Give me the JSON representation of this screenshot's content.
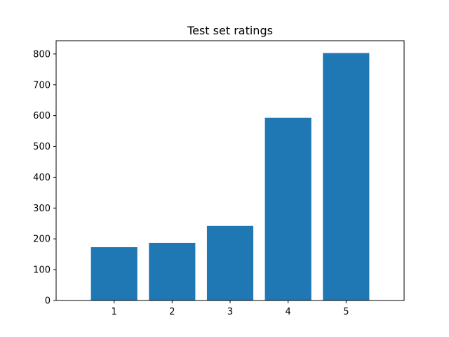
{
  "chart_data": {
    "type": "bar",
    "title": "Test set ratings",
    "xlabel": "",
    "ylabel": "",
    "categories": [
      "1",
      "2",
      "3",
      "4",
      "5"
    ],
    "values": [
      173,
      187,
      242,
      593,
      803
    ],
    "ylim": [
      0,
      843
    ],
    "yticks": [
      "0",
      "100",
      "200",
      "300",
      "400",
      "500",
      "600",
      "700",
      "800"
    ],
    "bar_color": "#1f77b4",
    "grid": false,
    "legend": "none"
  }
}
